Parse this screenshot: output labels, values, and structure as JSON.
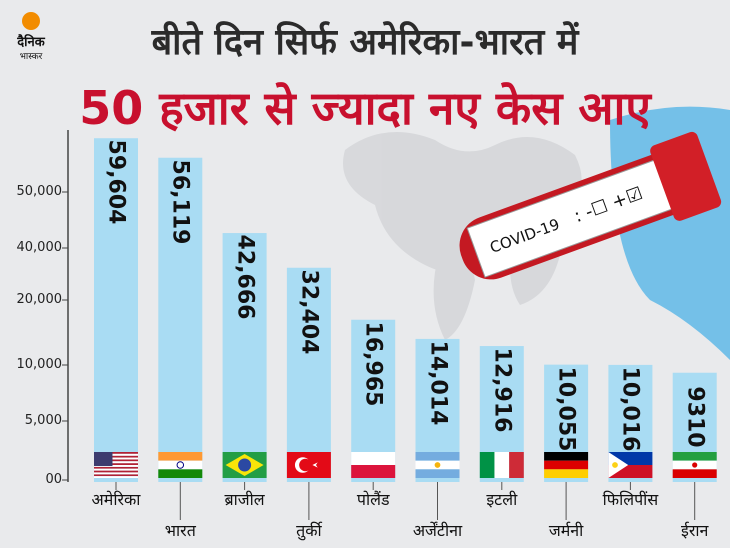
{
  "brand": {
    "name_line1": "दैनिक",
    "name_line2": "भास्कर",
    "sun_color": "#f28c00"
  },
  "title": "बीते दिन सिर्फ अमेरिका-भारत में",
  "subtitle": "50 हजार से ज्यादा नए केस आए",
  "test_tube_label": "COVID-19",
  "test_tube_marks": ": -☐ +☑",
  "colors": {
    "bar": "#a9dcf3",
    "title": "#2b2b2b",
    "subtitle": "#c8102e"
  },
  "chart_data": {
    "type": "bar",
    "categories": [
      "अमेरिका",
      "भारत",
      "ब्राजील",
      "तुर्की",
      "पोलैंड",
      "अर्जेंटीना",
      "इटली",
      "जर्मनी",
      "फिलिपींस",
      "ईरान"
    ],
    "values": [
      59604,
      56119,
      42666,
      32404,
      16965,
      14014,
      12916,
      10055,
      10016,
      9310
    ],
    "value_labels": [
      "59,604",
      "56,119",
      "42,666",
      "32,404",
      "16,965",
      "14,014",
      "12,916",
      "10,055",
      "10,016",
      "9310"
    ],
    "yticks": [
      0,
      5000,
      10000,
      20000,
      40000,
      50000
    ],
    "ytick_labels": [
      "00",
      "5,000",
      "10,000",
      "20,000",
      "40,000",
      "50,000"
    ],
    "flags": [
      "usa",
      "india",
      "brazil",
      "turkey",
      "poland",
      "argentina",
      "italy",
      "germany",
      "philippines",
      "iran"
    ],
    "bar_color": "#a9dcf3",
    "xlabel": "",
    "ylabel": ""
  }
}
